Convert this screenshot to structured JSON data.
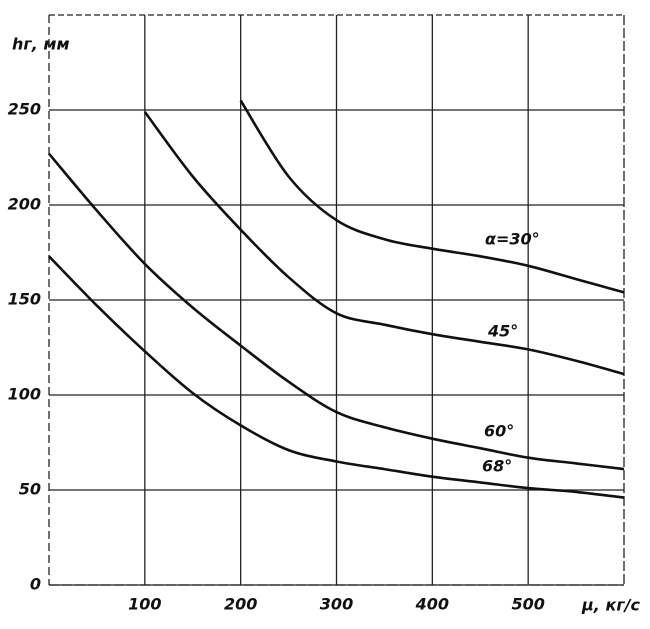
{
  "chart_data": {
    "type": "line",
    "x_label": "μ, кг/с",
    "y_label": "hг, мм",
    "x": [
      0,
      50,
      100,
      150,
      200,
      250,
      300,
      350,
      400,
      450,
      500,
      550,
      600
    ],
    "series": [
      {
        "name": "α=30°",
        "color": "#111111",
        "values": [
          null,
          null,
          null,
          null,
          255,
          215,
          192,
          182,
          177,
          173,
          168,
          161,
          154
        ]
      },
      {
        "name": "45°",
        "color": "#111111",
        "values": [
          null,
          null,
          249,
          215,
          187,
          162,
          143,
          137,
          132,
          128,
          124,
          118,
          111
        ]
      },
      {
        "name": "60°",
        "color": "#111111",
        "values": [
          227,
          197,
          169,
          146,
          126,
          107,
          91,
          83,
          77,
          72,
          67,
          64,
          61
        ]
      },
      {
        "name": "68°",
        "color": "#111111",
        "values": [
          173,
          147,
          123,
          101,
          84,
          71,
          65,
          61,
          57,
          54,
          51,
          49,
          46
        ]
      }
    ],
    "xlim": [
      0,
      600
    ],
    "ylim": [
      0,
      300
    ],
    "xticks": [
      100,
      200,
      300,
      400,
      500
    ],
    "yticks": [
      0,
      50,
      100,
      150,
      200,
      250
    ],
    "grid": true
  }
}
